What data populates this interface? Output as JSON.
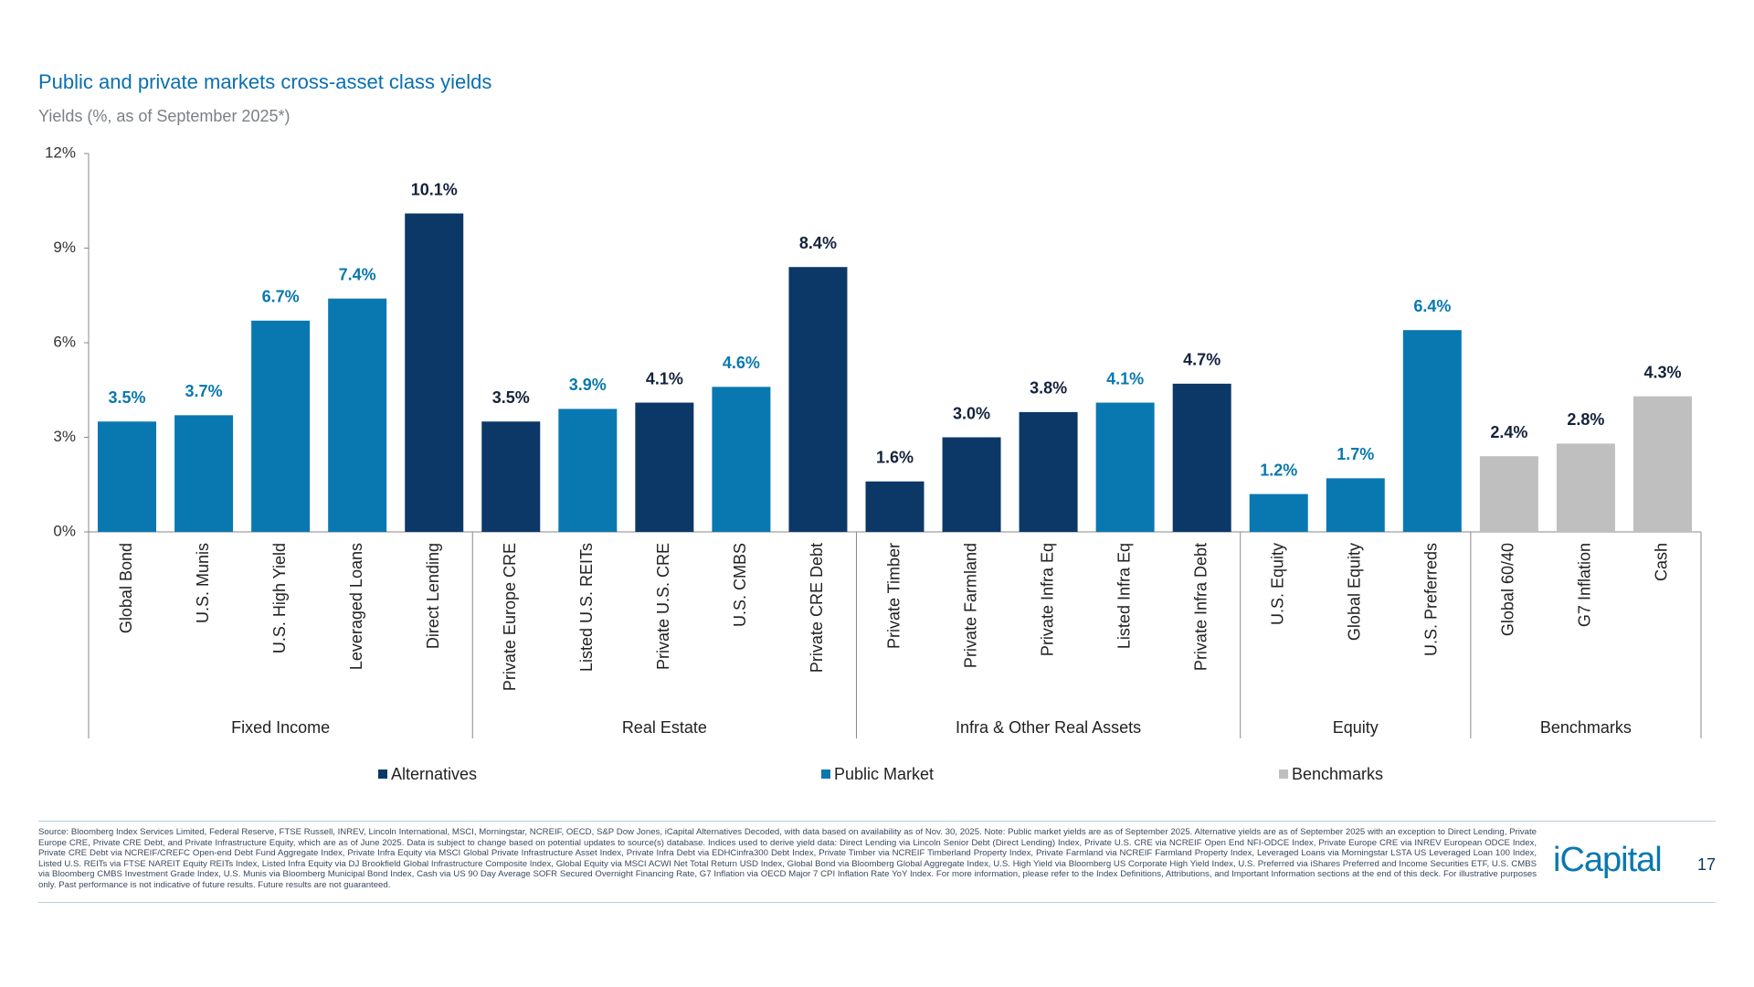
{
  "chart_data": {
    "type": "bar",
    "title": "Public and private markets cross-asset class yields",
    "subtitle": "Yields (%, as of September 2025*)",
    "ylim": [
      0,
      12
    ],
    "yticks": [
      {
        "value": 0,
        "label": "0%"
      },
      {
        "value": 3,
        "label": "3%"
      },
      {
        "value": 6,
        "label": "6%"
      },
      {
        "value": 9,
        "label": "9%"
      },
      {
        "value": 12,
        "label": "12%"
      }
    ],
    "groups": [
      {
        "name": "Fixed Income",
        "categories": [
          "Global Bond",
          "U.S. Munis",
          "U.S. High Yield",
          "Leveraged Loans",
          "Direct Lending"
        ]
      },
      {
        "name": "Real Estate",
        "categories": [
          "Private Europe CRE",
          "Listed U.S. REITs",
          "Private U.S. CRE",
          "U.S. CMBS",
          "Private CRE Debt"
        ]
      },
      {
        "name": "Infra & Other Real Assets",
        "categories": [
          "Private Timber",
          "Private Farmland",
          "Private Infra Eq",
          "Listed Infra Eq",
          "Private Infra Debt"
        ]
      },
      {
        "name": "Equity",
        "categories": [
          "U.S. Equity",
          "Global Equity",
          "U.S. Preferreds"
        ]
      },
      {
        "name": "Benchmarks",
        "categories": [
          "Global 60/40",
          "G7 Inflation",
          "Cash"
        ]
      }
    ],
    "series": [
      {
        "name": "Alternatives",
        "color": "#0c3868",
        "label_color": "#14233c",
        "values": [
          null,
          null,
          null,
          null,
          10.1,
          3.5,
          null,
          4.1,
          null,
          8.4,
          1.6,
          3.0,
          3.8,
          null,
          4.7,
          null,
          null,
          null,
          null,
          null,
          null
        ],
        "value_labels": [
          null,
          null,
          null,
          null,
          "10.1%",
          "3.5%",
          null,
          "4.1%",
          null,
          "8.4%",
          "1.6%",
          "3.0%",
          "3.8%",
          null,
          "4.7%",
          null,
          null,
          null,
          null,
          null,
          null
        ]
      },
      {
        "name": "Public Market",
        "color": "#0a78b0",
        "label_color": "#0a78b0",
        "values": [
          3.5,
          3.7,
          6.7,
          7.4,
          null,
          null,
          3.9,
          null,
          4.6,
          null,
          null,
          null,
          null,
          4.1,
          null,
          1.2,
          1.7,
          6.4,
          null,
          null,
          null
        ],
        "value_labels": [
          "3.5%",
          "3.7%",
          "6.7%",
          "7.4%",
          null,
          null,
          "3.9%",
          null,
          "4.6%",
          null,
          null,
          null,
          null,
          "4.1%",
          null,
          "1.2%",
          "1.7%",
          "6.4%",
          null,
          null,
          null
        ]
      },
      {
        "name": "Benchmarks",
        "color": "#bfbfbf",
        "label_color": "#14233c",
        "values": [
          null,
          null,
          null,
          null,
          null,
          null,
          null,
          null,
          null,
          null,
          null,
          null,
          null,
          null,
          null,
          null,
          null,
          null,
          2.4,
          2.8,
          4.3
        ],
        "value_labels": [
          null,
          null,
          null,
          null,
          null,
          null,
          null,
          null,
          null,
          null,
          null,
          null,
          null,
          null,
          null,
          null,
          null,
          null,
          "2.4%",
          "2.8%",
          "4.3%"
        ]
      }
    ],
    "grid": false
  },
  "footer": {
    "source": "Source: Bloomberg Index Services Limited, Federal Reserve, FTSE Russell, INREV, Lincoln International, MSCI, Morningstar, NCREIF, OECD, S&P Dow Jones, iCapital Alternatives Decoded, with data based on availability as of Nov. 30, 2025. Note: Public market yields are as of September 2025. Alternative yields are as of September 2025 with an exception to Direct Lending, Private Europe CRE, Private CRE Debt, and Private Infrastructure Equity, which are as of June 2025. Data is subject to change based on potential updates to source(s) database. Indices used to derive yield data: Direct Lending via Lincoln Senior Debt (Direct Lending) Index, Private U.S. CRE via NCREIF Open End NFI-ODCE Index, Private Europe CRE via INREV European ODCE Index, Private CRE Debt via NCREIF/CREFC Open-end Debt Fund Aggregate Index, Private Infra Equity via MSCI Global Private Infrastructure Asset Index, Private Infra Debt via EDHCinfra300 Debt Index, Private Timber via NCREIF Timberland Property Index, Private Farmland via NCREIF Farmland Property Index, Leveraged Loans via Morningstar LSTA US Leveraged Loan 100 Index, Listed U.S. REITs via FTSE NAREIT Equity REITs Index, Listed Infra Equity via DJ Brookfield Global Infrastructure Composite Index, Global Equity via MSCI ACWI Net Total Return USD Index, Global Bond via Bloomberg Global Aggregate Index, U.S. High Yield via Bloomberg US Corporate High Yield Index, U.S. Preferred via iShares Preferred and Income Securities ETF, U.S. CMBS via Bloomberg CMBS Investment Grade Index, U.S. Munis via Bloomberg Municipal Bond Index, Cash via US 90 Day Average SOFR Secured Overnight Financing Rate, G7 Inflation via OECD Major 7 CPI Inflation Rate YoY Index. For more information, please refer to the Index Definitions, Attributions, and Important Information sections at the end of this deck. For illustrative purposes only. Past performance is not indicative of future results. Future results are not guaranteed.",
    "logo": "iCapital",
    "page": "17"
  }
}
